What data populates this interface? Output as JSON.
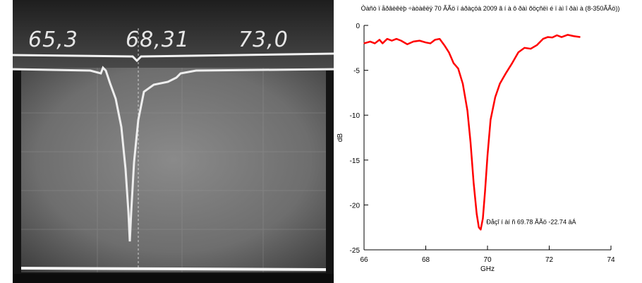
{
  "photo": {
    "readouts": [
      "65,3",
      "68,31",
      "73,0"
    ]
  },
  "chart_data": {
    "type": "line",
    "title": "Òàñò ï åðâèêèþ ÷àòàêëÿ 70 ÃÃö ï áðàçöà 2009 ã í à ô ðàì õöçñëì é ï àì î ðàì à (8-350ÃÃö))",
    "xlabel": "GHz",
    "ylabel": "dB",
    "xlim": [
      66,
      74
    ],
    "ylim": [
      -25,
      0
    ],
    "x_ticks": [
      "66",
      "68",
      "70",
      "72",
      "74"
    ],
    "y_ticks": [
      "0",
      "-5",
      "-10",
      "-15",
      "-20",
      "-25"
    ],
    "grid": false,
    "series": [
      {
        "color": "#ff0000",
        "x": [
          66.0,
          66.2,
          66.35,
          66.5,
          66.6,
          66.75,
          66.9,
          67.05,
          67.2,
          67.4,
          67.6,
          67.8,
          68.0,
          68.15,
          68.3,
          68.45,
          68.6,
          68.75,
          68.9,
          69.05,
          69.2,
          69.35,
          69.45,
          69.55,
          69.65,
          69.72,
          69.78,
          69.85,
          69.92,
          70.0,
          70.1,
          70.25,
          70.4,
          70.6,
          70.8,
          71.0,
          71.2,
          71.4,
          71.6,
          71.8,
          71.95,
          72.1,
          72.25,
          72.4,
          72.6,
          72.8,
          73.0
        ],
        "values": [
          -2.0,
          -1.8,
          -2.0,
          -1.6,
          -2.0,
          -1.5,
          -1.7,
          -1.5,
          -1.7,
          -2.1,
          -1.8,
          -1.7,
          -1.9,
          -2.0,
          -1.6,
          -1.5,
          -2.2,
          -3.0,
          -4.2,
          -4.8,
          -6.5,
          -9.5,
          -13.0,
          -17.5,
          -21.0,
          -22.5,
          -22.74,
          -21.5,
          -18.5,
          -14.5,
          -10.5,
          -8.0,
          -6.5,
          -5.3,
          -4.2,
          -3.0,
          -2.5,
          -2.6,
          -2.2,
          -1.5,
          -1.3,
          -1.35,
          -1.1,
          -1.3,
          -1.05,
          -1.2,
          -1.3
        ]
      }
    ],
    "annotation": {
      "text": "Ðåçî í àí ñ 69.78 ÃÃö  -22.74 äÁ",
      "x": 69.78,
      "y": -22.74
    }
  }
}
